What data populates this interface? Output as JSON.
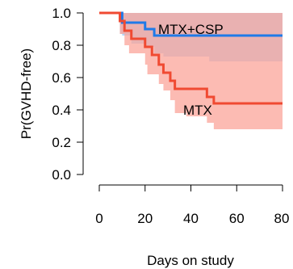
{
  "chart_data": {
    "type": "line",
    "subtype": "kaplan-meier survival curves with confidence bands",
    "xlabel": "Days on study",
    "ylabel": "Pr(GVHD-free)",
    "xlim": [
      0,
      80
    ],
    "ylim": [
      0,
      1
    ],
    "xticks": [
      "0",
      "20",
      "40",
      "60",
      "80"
    ],
    "yticks": [
      "0.0",
      "0.2",
      "0.4",
      "0.6",
      "0.8",
      "1.0"
    ],
    "grid": false,
    "series": [
      {
        "name": "MTX+CSP",
        "color": "#1f7ae8",
        "band_color": "#99c8f5",
        "steps": [
          [
            0,
            1.0
          ],
          [
            10,
            0.94
          ],
          [
            20,
            0.9
          ],
          [
            24,
            0.86
          ],
          [
            80,
            0.86
          ]
        ],
        "upper": [
          [
            9,
            1.0
          ],
          [
            80,
            1.0
          ]
        ],
        "lower": [
          [
            9,
            0.87
          ],
          [
            10,
            0.86
          ],
          [
            14,
            0.81
          ],
          [
            20,
            0.79
          ],
          [
            24,
            0.75
          ],
          [
            28,
            0.73
          ],
          [
            35,
            0.73
          ],
          [
            48,
            0.7
          ],
          [
            80,
            0.7
          ]
        ]
      },
      {
        "name": "MTX",
        "color": "#f04a32",
        "band_color": "#fba49a",
        "steps": [
          [
            0,
            1.0
          ],
          [
            9,
            0.95
          ],
          [
            11,
            0.89
          ],
          [
            14,
            0.84
          ],
          [
            20,
            0.79
          ],
          [
            23,
            0.74
          ],
          [
            26,
            0.68
          ],
          [
            28,
            0.63
          ],
          [
            31,
            0.58
          ],
          [
            33,
            0.53
          ],
          [
            47,
            0.48
          ],
          [
            50,
            0.44
          ],
          [
            80,
            0.44
          ]
        ],
        "upper": [
          [
            9,
            1.0
          ],
          [
            80,
            1.0
          ]
        ],
        "lower": [
          [
            9,
            0.87
          ],
          [
            11,
            0.8
          ],
          [
            13,
            0.75
          ],
          [
            20,
            0.68
          ],
          [
            21,
            0.62
          ],
          [
            26,
            0.56
          ],
          [
            28,
            0.52
          ],
          [
            31,
            0.46
          ],
          [
            33,
            0.38
          ],
          [
            38,
            0.36
          ],
          [
            47,
            0.32
          ],
          [
            50,
            0.28
          ],
          [
            80,
            0.28
          ]
        ]
      }
    ]
  }
}
